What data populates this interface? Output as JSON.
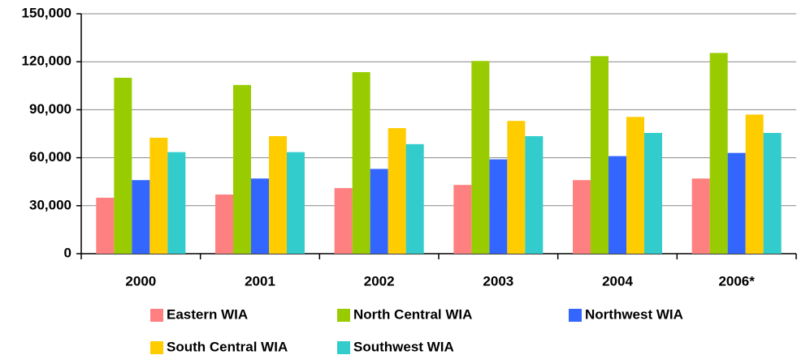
{
  "chart_data": {
    "type": "bar",
    "categories": [
      "2000",
      "2001",
      "2002",
      "2003",
      "2004",
      "2006*"
    ],
    "series": [
      {
        "name": "Eastern WIA",
        "color": "#ff8080",
        "values": [
          35000,
          37000,
          41000,
          43000,
          46000,
          47000
        ]
      },
      {
        "name": "North Central WIA",
        "color": "#99cc00",
        "values": [
          110000,
          105500,
          113500,
          120500,
          123500,
          125500
        ]
      },
      {
        "name": "Northwest WIA",
        "color": "#3366ff",
        "values": [
          46000,
          47000,
          53000,
          59000,
          61000,
          63000
        ]
      },
      {
        "name": "South Central WIA",
        "color": "#ffcc00",
        "values": [
          72500,
          73500,
          78500,
          83000,
          85500,
          87000
        ]
      },
      {
        "name": "Southwest WIA",
        "color": "#33cccc",
        "values": [
          63500,
          63500,
          68500,
          73500,
          75500,
          75500
        ]
      }
    ],
    "ylim": [
      0,
      150000
    ],
    "yticks": [
      0,
      {
        "value": 30000,
        "label": "30,000"
      },
      {
        "value": 60000,
        "label": "60,000"
      },
      {
        "value": 90000,
        "label": "90,000"
      },
      {
        "value": 120000,
        "label": "120,000"
      },
      {
        "value": 150000,
        "label": "150,000"
      }
    ],
    "grid": true,
    "legend": "bottom"
  }
}
